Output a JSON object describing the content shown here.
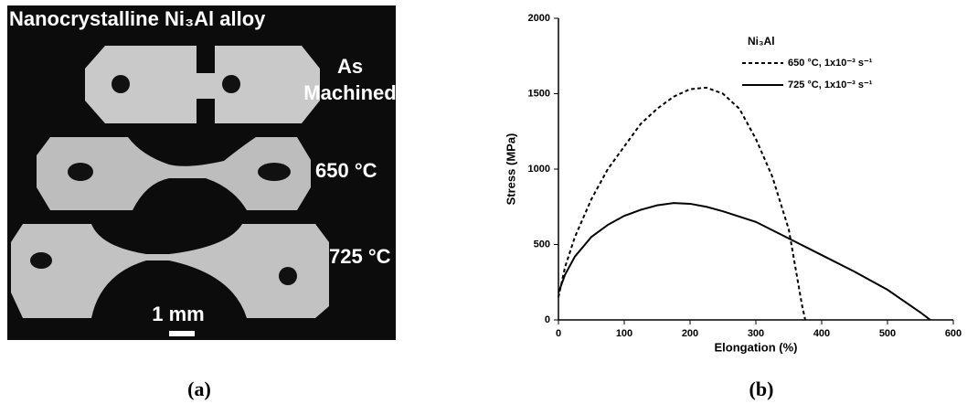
{
  "panel_a": {
    "title": "Nanocrystalline Ni₃Al alloy",
    "labels": [
      "As",
      "Machined",
      "650 °C",
      "725 °C"
    ],
    "scale": "1 mm",
    "caption": "(a)"
  },
  "chart_data": {
    "type": "line",
    "caption": "(b)",
    "xlabel": "Elongation (%)",
    "ylabel": "Stress (MPa)",
    "legend_title": "Ni₃Al",
    "xlim": [
      0,
      600
    ],
    "ylim": [
      0,
      2000
    ],
    "xticks": [
      0,
      100,
      200,
      300,
      400,
      500,
      600
    ],
    "yticks": [
      0,
      500,
      1000,
      1500,
      2000
    ],
    "series": [
      {
        "name": "650 °C, 1x10⁻³ s⁻¹",
        "color": "#000000",
        "dash": true,
        "x": [
          0,
          10,
          25,
          50,
          75,
          100,
          125,
          150,
          175,
          200,
          225,
          250,
          275,
          300,
          325,
          350,
          360,
          370,
          375
        ],
        "values": [
          150,
          350,
          550,
          800,
          1000,
          1150,
          1300,
          1400,
          1480,
          1530,
          1540,
          1500,
          1400,
          1200,
          950,
          600,
          350,
          100,
          0
        ]
      },
      {
        "name": "725 °C, 1x10⁻³ s⁻¹",
        "color": "#000000",
        "dash": false,
        "x": [
          0,
          10,
          25,
          50,
          75,
          100,
          125,
          150,
          175,
          200,
          225,
          250,
          300,
          350,
          400,
          450,
          500,
          550,
          565
        ],
        "values": [
          180,
          300,
          420,
          550,
          630,
          690,
          730,
          760,
          775,
          770,
          750,
          720,
          650,
          540,
          430,
          320,
          200,
          50,
          0
        ]
      }
    ]
  }
}
